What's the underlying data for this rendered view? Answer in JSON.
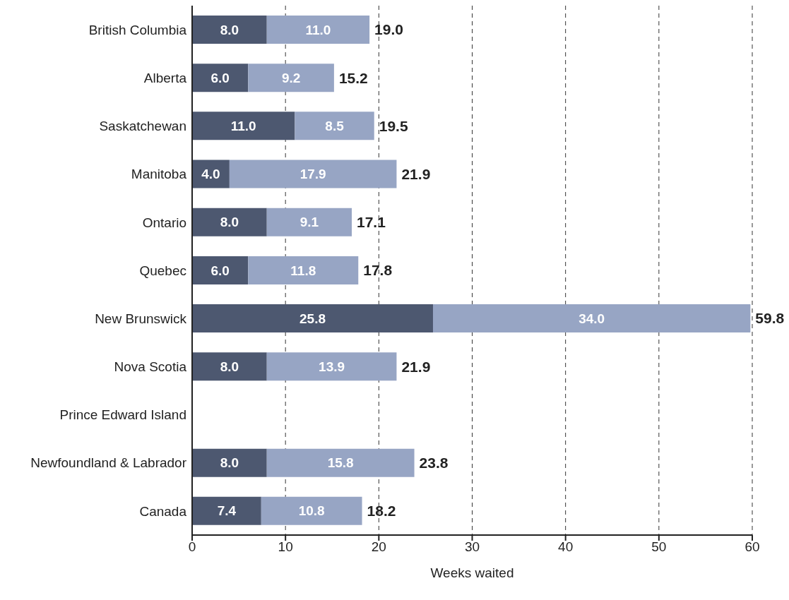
{
  "chart_data": {
    "type": "bar",
    "orientation": "horizontal",
    "stacked": true,
    "xlabel": "Weeks waited",
    "categories": [
      "British Columbia",
      "Alberta",
      "Saskatchewan",
      "Manitoba",
      "Ontario",
      "Quebec",
      "New Brunswick",
      "Nova Scotia",
      "Prince Edward Island",
      "Newfoundland & Labrador",
      "Canada"
    ],
    "series": [
      {
        "color": "#4d5870",
        "values": [
          8.0,
          6.0,
          11.0,
          4.0,
          8.0,
          6.0,
          25.8,
          8.0,
          null,
          8.0,
          7.4
        ],
        "value_labels": [
          "8.0",
          "6.0",
          "11.0",
          "4.0",
          "8.0",
          "6.0",
          "25.8",
          "8.0",
          null,
          "8.0",
          "7.4"
        ]
      },
      {
        "color": "#97a5c4",
        "values": [
          11.0,
          9.2,
          8.5,
          17.9,
          9.1,
          11.8,
          34.0,
          13.9,
          null,
          15.8,
          10.8
        ],
        "value_labels": [
          "11.0",
          "9.2",
          "8.5",
          "17.9",
          "9.1",
          "11.8",
          "34.0",
          "13.9",
          null,
          "15.8",
          "10.8"
        ]
      }
    ],
    "totals": [
      "19.0",
      "15.2",
      "19.5",
      "21.9",
      "17.1",
      "17.8",
      "59.8",
      "21.9",
      null,
      "23.8",
      "18.2"
    ],
    "xlim": [
      0,
      60
    ],
    "xticks": [
      0,
      10,
      20,
      30,
      40,
      50,
      60
    ],
    "grid": "x"
  }
}
